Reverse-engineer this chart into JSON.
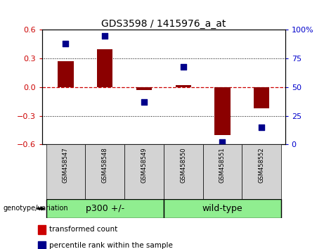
{
  "title": "GDS3598 / 1415976_a_at",
  "samples": [
    "GSM458547",
    "GSM458548",
    "GSM458549",
    "GSM458550",
    "GSM458551",
    "GSM458552"
  ],
  "transformed_counts": [
    0.27,
    0.4,
    -0.03,
    0.02,
    -0.5,
    -0.22
  ],
  "percentile_ranks": [
    88,
    95,
    37,
    68,
    2,
    15
  ],
  "bar_color": "#8B0000",
  "dot_color": "#00008B",
  "ylim_left": [
    -0.6,
    0.6
  ],
  "ylim_right": [
    0,
    100
  ],
  "yticks_left": [
    -0.6,
    -0.3,
    0.0,
    0.3,
    0.6
  ],
  "yticks_right": [
    0,
    25,
    50,
    75,
    100
  ],
  "left_tick_color": "#cc0000",
  "right_tick_color": "#0000cc",
  "hline_color": "#cc0000",
  "dotted_lines": [
    -0.3,
    0.3
  ],
  "group_label": "genotype/variation",
  "groups": [
    {
      "label": "p300 +/-",
      "start": 0,
      "end": 2
    },
    {
      "label": "wild-type",
      "start": 3,
      "end": 5
    }
  ],
  "group_color": "#90EE90",
  "sample_box_color": "#D3D3D3",
  "legend_items": [
    {
      "label": "transformed count",
      "color": "#cc0000"
    },
    {
      "label": "percentile rank within the sample",
      "color": "#00008B"
    }
  ],
  "bar_width": 0.4,
  "title_fontsize": 10,
  "tick_fontsize": 8,
  "sample_fontsize": 6,
  "group_fontsize": 9,
  "legend_fontsize": 7.5
}
